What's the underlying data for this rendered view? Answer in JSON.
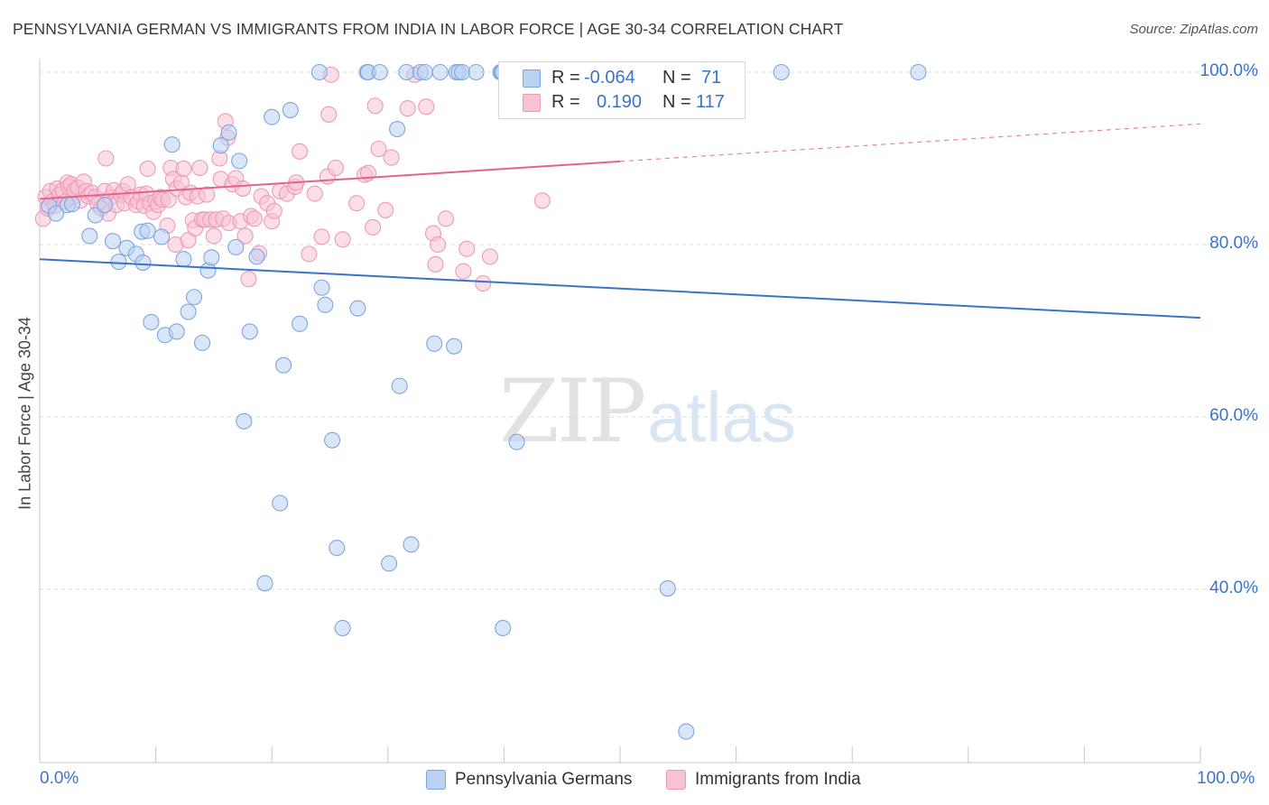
{
  "title": "PENNSYLVANIA GERMAN VS IMMIGRANTS FROM INDIA IN LABOR FORCE | AGE 30-34 CORRELATION CHART",
  "source": "Source: ZipAtlas.com",
  "watermark": {
    "zip": "ZIP",
    "atlas": "atlas"
  },
  "colors": {
    "blue": "#3a73c9",
    "blue_fill": "#b9d1f2",
    "blue_stroke": "#7ea6de",
    "pink": "#e4628f",
    "pink_fill": "#f7c3d4",
    "pink_stroke": "#ee9ab6",
    "grid": "#dcdcdc"
  },
  "legend": {
    "rows": [
      {
        "r_label": "R =",
        "r_value": "-0.064",
        "n_label": "N =",
        "n_value": "71"
      },
      {
        "r_label": "R =",
        "r_value": "0.190",
        "n_label": "N =",
        "n_value": "117"
      }
    ]
  },
  "chart_data": {
    "type": "scatter",
    "title": "PENNSYLVANIA GERMAN VS IMMIGRANTS FROM INDIA IN LABOR FORCE | AGE 30-34 CORRELATION CHART",
    "xlabel": "",
    "ylabel": "In Labor Force | Age 30-34",
    "xlim": [
      0,
      100
    ],
    "ylim": [
      20,
      104
    ],
    "x_tick_labels": [
      "0.0%",
      "100.0%"
    ],
    "y_ticks": [
      100,
      80,
      60,
      40
    ],
    "y_tick_labels": [
      "100.0%",
      "80.0%",
      "60.0%",
      "40.0%"
    ],
    "grid": true,
    "legend_position": "bottom",
    "series": [
      {
        "name": "Pennsylvania Germans",
        "color": "#3a73c9",
        "r": -0.064,
        "n": 71,
        "trend": {
          "x": [
            0,
            100
          ],
          "y": [
            78.3,
            71.5
          ],
          "dashed_from": null
        },
        "points": [
          [
            0.8,
            84.5
          ],
          [
            1.4,
            83.6
          ],
          [
            2.4,
            84.6
          ],
          [
            2.8,
            84.7
          ],
          [
            4.3,
            81.0
          ],
          [
            4.8,
            83.4
          ],
          [
            5.6,
            84.6
          ],
          [
            6.3,
            80.4
          ],
          [
            6.8,
            78.0
          ],
          [
            7.5,
            79.6
          ],
          [
            8.3,
            78.9
          ],
          [
            8.8,
            81.5
          ],
          [
            8.9,
            77.9
          ],
          [
            9.3,
            81.6
          ],
          [
            9.6,
            71.0
          ],
          [
            10.5,
            80.9
          ],
          [
            10.8,
            69.5
          ],
          [
            11.4,
            91.6
          ],
          [
            11.8,
            69.9
          ],
          [
            12.4,
            78.3
          ],
          [
            12.8,
            72.2
          ],
          [
            13.3,
            73.9
          ],
          [
            14.0,
            68.6
          ],
          [
            14.5,
            77.0
          ],
          [
            14.8,
            78.5
          ],
          [
            15.6,
            91.5
          ],
          [
            16.3,
            93.0
          ],
          [
            16.9,
            79.7
          ],
          [
            17.2,
            89.7
          ],
          [
            17.6,
            59.5
          ],
          [
            18.1,
            69.9
          ],
          [
            18.7,
            78.6
          ],
          [
            19.4,
            40.7
          ],
          [
            20.0,
            94.8
          ],
          [
            20.7,
            50.0
          ],
          [
            21.0,
            66.0
          ],
          [
            21.6,
            95.6
          ],
          [
            22.4,
            70.8
          ],
          [
            24.1,
            100.0
          ],
          [
            24.3,
            75.0
          ],
          [
            24.6,
            73.0
          ],
          [
            25.2,
            57.3
          ],
          [
            25.6,
            44.8
          ],
          [
            26.1,
            35.5
          ],
          [
            27.4,
            72.6
          ],
          [
            28.2,
            100.0
          ],
          [
            28.3,
            100.0
          ],
          [
            29.3,
            100.0
          ],
          [
            30.1,
            43.0
          ],
          [
            30.8,
            93.4
          ],
          [
            31.0,
            63.6
          ],
          [
            31.6,
            100.0
          ],
          [
            32.0,
            45.2
          ],
          [
            32.8,
            100.0
          ],
          [
            33.2,
            100.0
          ],
          [
            34.0,
            68.5
          ],
          [
            34.5,
            100.0
          ],
          [
            35.7,
            68.2
          ],
          [
            35.9,
            100.0
          ],
          [
            36.1,
            100.0
          ],
          [
            36.4,
            100.0
          ],
          [
            37.6,
            100.0
          ],
          [
            39.7,
            100.0
          ],
          [
            39.8,
            100.0
          ],
          [
            39.9,
            100.0
          ],
          [
            39.9,
            35.5
          ],
          [
            41.1,
            57.1
          ],
          [
            54.1,
            40.1
          ],
          [
            55.7,
            23.5
          ],
          [
            63.9,
            100.0
          ],
          [
            75.7,
            100.0
          ]
        ]
      },
      {
        "name": "Immigrants from India",
        "color": "#e4628f",
        "r": 0.19,
        "n": 117,
        "trend": {
          "x": [
            0,
            100
          ],
          "y": [
            85.3,
            94.0
          ],
          "dashed_from": 50
        },
        "points": [
          [
            0.3,
            83.0
          ],
          [
            0.5,
            85.5
          ],
          [
            0.7,
            84.2
          ],
          [
            0.9,
            86.2
          ],
          [
            1.1,
            85.0
          ],
          [
            1.3,
            84.5
          ],
          [
            1.5,
            86.5
          ],
          [
            1.7,
            85.8
          ],
          [
            2.0,
            86.3
          ],
          [
            2.2,
            85.0
          ],
          [
            2.4,
            87.2
          ],
          [
            2.5,
            86.7
          ],
          [
            2.7,
            87.0
          ],
          [
            2.9,
            85.5
          ],
          [
            3.0,
            86.3
          ],
          [
            3.3,
            86.6
          ],
          [
            3.5,
            85.1
          ],
          [
            3.8,
            87.3
          ],
          [
            4.0,
            86.2
          ],
          [
            4.2,
            85.6
          ],
          [
            4.5,
            86.0
          ],
          [
            4.8,
            85.5
          ],
          [
            5.0,
            84.7
          ],
          [
            5.3,
            84.2
          ],
          [
            5.6,
            86.2
          ],
          [
            5.7,
            90.0
          ],
          [
            5.9,
            83.6
          ],
          [
            6.1,
            85.5
          ],
          [
            6.4,
            86.3
          ],
          [
            6.6,
            84.6
          ],
          [
            7.0,
            85.8
          ],
          [
            7.2,
            86.2
          ],
          [
            7.3,
            84.8
          ],
          [
            7.6,
            87.0
          ],
          [
            7.9,
            85.5
          ],
          [
            8.3,
            84.6
          ],
          [
            8.5,
            85.0
          ],
          [
            8.7,
            85.8
          ],
          [
            9.0,
            84.5
          ],
          [
            9.2,
            85.9
          ],
          [
            9.3,
            88.8
          ],
          [
            9.5,
            84.8
          ],
          [
            9.8,
            83.8
          ],
          [
            10.0,
            85.0
          ],
          [
            10.2,
            84.6
          ],
          [
            10.4,
            85.5
          ],
          [
            10.6,
            85.2
          ],
          [
            11.0,
            82.2
          ],
          [
            11.1,
            85.2
          ],
          [
            11.3,
            88.9
          ],
          [
            11.5,
            87.6
          ],
          [
            11.7,
            80.0
          ],
          [
            11.8,
            86.5
          ],
          [
            12.2,
            87.2
          ],
          [
            12.4,
            88.8
          ],
          [
            12.6,
            85.5
          ],
          [
            12.8,
            80.5
          ],
          [
            13.0,
            86.0
          ],
          [
            13.2,
            82.8
          ],
          [
            13.4,
            81.9
          ],
          [
            13.6,
            85.6
          ],
          [
            13.8,
            88.9
          ],
          [
            14.0,
            82.9
          ],
          [
            14.2,
            82.9
          ],
          [
            14.4,
            85.8
          ],
          [
            14.7,
            82.9
          ],
          [
            15.0,
            81.0
          ],
          [
            15.2,
            82.9
          ],
          [
            15.5,
            90.0
          ],
          [
            15.6,
            87.6
          ],
          [
            15.8,
            83.0
          ],
          [
            16.0,
            94.3
          ],
          [
            16.2,
            92.4
          ],
          [
            16.3,
            82.5
          ],
          [
            16.6,
            87.0
          ],
          [
            16.9,
            87.7
          ],
          [
            17.3,
            82.7
          ],
          [
            17.5,
            86.5
          ],
          [
            17.7,
            81.0
          ],
          [
            18.0,
            76.0
          ],
          [
            18.2,
            83.3
          ],
          [
            18.5,
            83.0
          ],
          [
            18.9,
            79.0
          ],
          [
            19.1,
            85.6
          ],
          [
            19.6,
            84.8
          ],
          [
            20.0,
            82.7
          ],
          [
            20.2,
            83.9
          ],
          [
            20.7,
            86.2
          ],
          [
            21.3,
            85.9
          ],
          [
            22.0,
            86.7
          ],
          [
            22.1,
            87.2
          ],
          [
            22.4,
            90.8
          ],
          [
            23.2,
            78.9
          ],
          [
            23.7,
            85.9
          ],
          [
            24.3,
            80.9
          ],
          [
            24.8,
            87.9
          ],
          [
            24.9,
            95.1
          ],
          [
            25.1,
            99.7
          ],
          [
            25.5,
            88.9
          ],
          [
            26.1,
            80.6
          ],
          [
            27.3,
            84.8
          ],
          [
            28.0,
            88.1
          ],
          [
            28.3,
            88.3
          ],
          [
            28.7,
            82.0
          ],
          [
            28.9,
            96.1
          ],
          [
            29.2,
            91.1
          ],
          [
            29.8,
            84.0
          ],
          [
            30.3,
            90.1
          ],
          [
            31.7,
            95.8
          ],
          [
            32.3,
            99.7
          ],
          [
            33.3,
            96.0
          ],
          [
            33.9,
            81.3
          ],
          [
            34.1,
            77.7
          ],
          [
            34.3,
            80.0
          ],
          [
            35.0,
            83.0
          ],
          [
            36.5,
            76.9
          ],
          [
            36.8,
            79.5
          ],
          [
            38.2,
            75.5
          ],
          [
            38.8,
            78.6
          ],
          [
            40.5,
            100.0
          ],
          [
            43.3,
            85.1
          ]
        ]
      }
    ]
  }
}
